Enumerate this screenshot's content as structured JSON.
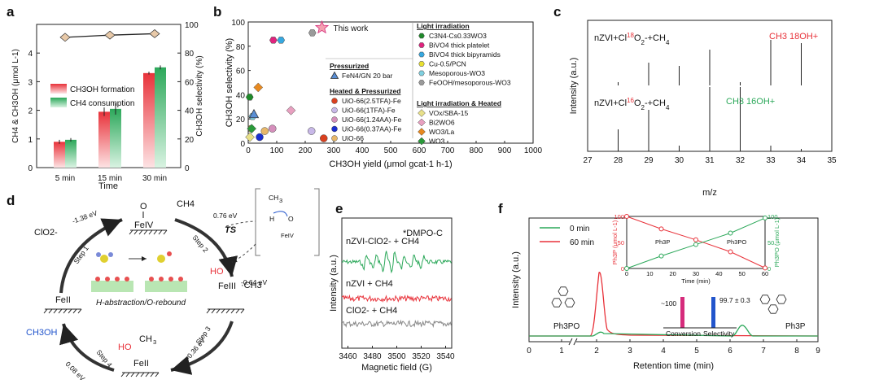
{
  "panels": {
    "a": "a",
    "b": "b",
    "c": "c",
    "d": "d",
    "e": "e",
    "f": "f"
  },
  "colors": {
    "red": "#e8323a",
    "green": "#2ca85a",
    "gray": "#888888",
    "blue": "#2255cc",
    "pink": "#d62c7c",
    "magenta": "#d62c7c"
  },
  "chart_data": [
    {
      "panel": "a",
      "type": "bar",
      "categories": [
        "5 min",
        "15 min",
        "30 min"
      ],
      "series": [
        {
          "name": "CH3OH formation",
          "values": [
            0.9,
            1.95,
            3.3
          ],
          "errors": [
            0.07,
            0.15,
            0.05
          ]
        },
        {
          "name": "CH4 consumption",
          "values": [
            0.97,
            2.05,
            3.5
          ],
          "errors": [
            0.06,
            0.2,
            0.07
          ]
        }
      ],
      "selectivity": {
        "values": [
          91,
          92.5,
          93.5
        ]
      },
      "xlabel": "Time",
      "ylabel": "CH4 & CH3OH (μmol L-1)",
      "y2label": "CH3OH selectivity (%)",
      "ylim": [
        0,
        5
      ],
      "y2lim": [
        0,
        100
      ],
      "yticks": [
        "0",
        "1",
        "2",
        "3",
        "4"
      ],
      "y2ticks": [
        "0",
        "20",
        "40",
        "60",
        "80",
        "100"
      ],
      "legend": [
        "CH3OH formation",
        "CH4 consumption"
      ]
    },
    {
      "panel": "b",
      "type": "scatter",
      "xlabel": "CH3OH yield (μmol gcat-1 h-1)",
      "ylabel": "CH3OH selectivity (%)",
      "xlim": [
        0,
        1000
      ],
      "ylim": [
        0,
        100
      ],
      "xticks": [
        "0",
        "100",
        "200",
        "300",
        "400",
        "500",
        "600",
        "700",
        "800",
        "900",
        "1000"
      ],
      "yticks": [
        "0",
        "20",
        "40",
        "60",
        "80",
        "100"
      ],
      "this_work": {
        "label": "This work",
        "x": 330,
        "y": 92
      },
      "legend_groups": [
        {
          "title": "Pressurized",
          "items": [
            {
              "name": "FeN4/GN 20 bar",
              "color": "#5a8fd6",
              "marker": "triangle"
            }
          ]
        },
        {
          "title": "Heated & Pressurized",
          "items": [
            {
              "name": "UiO-66(2.5TFA)-Fe",
              "color": "#d9401f",
              "marker": "circle"
            },
            {
              "name": "UiO-66(1TFA)-Fe",
              "color": "#c8b8e8",
              "marker": "circle"
            },
            {
              "name": "UiO-66(1.24AA)-Fe",
              "color": "#d58fbc",
              "marker": "circle"
            },
            {
              "name": "UiO-66(0.37AA)-Fe",
              "color": "#1a2fd0",
              "marker": "circle"
            },
            {
              "name": "UiO-66",
              "color": "#e8b86a",
              "marker": "circle"
            }
          ]
        },
        {
          "title": "Light irradiation",
          "items": [
            {
              "name": "C3N4-Cs0.33WO3",
              "color": "#1f8a2a",
              "marker": "hexagon"
            },
            {
              "name": "BiVO4 thick platelet",
              "color": "#e0237e",
              "marker": "hexagon"
            },
            {
              "name": "BiVO4 thick bipyramids",
              "color": "#36a8e0",
              "marker": "hexagon"
            },
            {
              "name": "Cu-0.5/PCN",
              "color": "#e8e030",
              "marker": "hexagon"
            },
            {
              "name": "Mesoporous-WO3",
              "color": "#7fd0e0",
              "marker": "hexagon"
            },
            {
              "name": "FeOOH/mesoporous-WO3",
              "color": "#9a9a9a",
              "marker": "hexagon"
            }
          ]
        },
        {
          "title": "Light irradiation & Heated",
          "items": [
            {
              "name": "VOx/SBA-15",
              "color": "#e8e08a",
              "marker": "diamond"
            },
            {
              "name": "Bi2WO6",
              "color": "#e8a0c0",
              "marker": "diamond"
            },
            {
              "name": "WO3/La",
              "color": "#e88a20",
              "marker": "diamond"
            },
            {
              "name": "WO3",
              "color": "#2a9a3a",
              "marker": "diamond"
            }
          ]
        }
      ],
      "points": [
        {
          "x": 5,
          "y": 38,
          "color": "#1f8a2a",
          "marker": "hexagon"
        },
        {
          "x": 88,
          "y": 85,
          "color": "#e0237e",
          "marker": "hexagon"
        },
        {
          "x": 115,
          "y": 85,
          "color": "#36a8e0",
          "marker": "hexagon"
        },
        {
          "x": 10,
          "y": 12,
          "color": "#e8e030",
          "marker": "hexagon"
        },
        {
          "x": 15,
          "y": 22,
          "color": "#7fd0e0",
          "marker": "hexagon"
        },
        {
          "x": 225,
          "y": 91,
          "color": "#9a9a9a",
          "marker": "hexagon"
        },
        {
          "x": 20,
          "y": 24,
          "color": "#5a8fd6",
          "marker": "triangle"
        },
        {
          "x": 265,
          "y": 4,
          "color": "#d9401f",
          "marker": "circle"
        },
        {
          "x": 222,
          "y": 10,
          "color": "#c8b8e8",
          "marker": "circle"
        },
        {
          "x": 85,
          "y": 12,
          "color": "#d58fbc",
          "marker": "circle"
        },
        {
          "x": 40,
          "y": 5,
          "color": "#1a2fd0",
          "marker": "circle"
        },
        {
          "x": 58,
          "y": 10,
          "color": "#e8b86a",
          "marker": "circle"
        },
        {
          "x": 6,
          "y": 5,
          "color": "#e8e08a",
          "marker": "diamond"
        },
        {
          "x": 150,
          "y": 27,
          "color": "#e8a0c0",
          "marker": "diamond"
        },
        {
          "x": 35,
          "y": 46,
          "color": "#e88a20",
          "marker": "diamond"
        },
        {
          "x": 12,
          "y": 12,
          "color": "#2a9a3a",
          "marker": "diamond"
        }
      ]
    },
    {
      "panel": "c",
      "type": "bar",
      "xlabel": "m/z",
      "ylabel": "Intensity (a.u.)",
      "xlim": [
        27,
        35
      ],
      "xticks": [
        "27",
        "28",
        "29",
        "30",
        "31",
        "32",
        "33",
        "34",
        "35"
      ],
      "upper": {
        "label": "nZVI+Cl18O2-+CH4",
        "label_prefix": "nZVI+Cl",
        "label_sup": "18",
        "label_suffix": "O",
        "label_sub": "2",
        "label_tail": "-+CH",
        "label_sub2": "4",
        "ion_label": "CH3 18OH+",
        "peaks": [
          {
            "x": 28,
            "y": 0.05
          },
          {
            "x": 29,
            "y": 0.35
          },
          {
            "x": 30,
            "y": 0.3
          },
          {
            "x": 31,
            "y": 0.55
          },
          {
            "x": 32,
            "y": 0.05
          },
          {
            "x": 33,
            "y": 0.7
          },
          {
            "x": 34,
            "y": 0.65
          }
        ]
      },
      "lower": {
        "label": "nZVI+Cl16O2-+CH4",
        "label_prefix": "nZVI+Cl",
        "label_sup": "16",
        "label_suffix": "O",
        "label_sub": "2",
        "label_tail": "-+CH",
        "label_sub2": "4",
        "ion_label": "CH3 16OH+",
        "peaks": [
          {
            "x": 28,
            "y": 0.3
          },
          {
            "x": 29,
            "y": 0.6
          },
          {
            "x": 30,
            "y": 0.05
          },
          {
            "x": 31,
            "y": 0.95
          },
          {
            "x": 32,
            "y": 0.95
          },
          {
            "x": 33,
            "y": 0.05
          },
          {
            "x": 34,
            "y": 0.0
          }
        ]
      }
    },
    {
      "panel": "e",
      "type": "line",
      "xlabel": "Magnetic field (G)",
      "ylabel": "Intensity (a.u.)",
      "xlim": [
        3455,
        3545
      ],
      "xticks": [
        "3460",
        "3480",
        "3500",
        "3520",
        "3540"
      ],
      "annotation": "*DMPO-C",
      "series": [
        {
          "name": "nZVI-ClO2- + CH4",
          "color": "#2ca85a"
        },
        {
          "name": "nZVI + CH4",
          "color": "#e8323a"
        },
        {
          "name": "ClO2- + CH4",
          "color": "#888888"
        }
      ]
    },
    {
      "panel": "f",
      "type": "line",
      "xlabel": "Retention time (min)",
      "ylabel": "Intensity (a.u.)",
      "xticks": [
        "0",
        "1",
        "2",
        "3",
        "4",
        "5",
        "6",
        "7",
        "8",
        "9"
      ],
      "legend": [
        "0 min",
        "60 min"
      ],
      "peak_labels": {
        "left": "Ph3PO",
        "right": "Ph3P"
      },
      "bar_labels": {
        "conversion": "Conversion",
        "selectivity": "Selectivity",
        "conv_value": "~100",
        "sel_value": "99.7 ± 0.3"
      },
      "inset": {
        "xlabel": "Time (min)",
        "ylabel_left": "Ph3P (μmol L-1)",
        "ylabel_right": "Ph3PO (μmol L-1)",
        "x": [
          0,
          15,
          30,
          45,
          60
        ],
        "ph3p": [
          100,
          76,
          55,
          32,
          1
        ],
        "ph3po": [
          0,
          24,
          46,
          68,
          97
        ],
        "xticks": [
          "0",
          "10",
          "20",
          "30",
          "40",
          "50",
          "60"
        ],
        "yticks": [
          "0",
          "50",
          "100"
        ],
        "legend": [
          "Ph3P",
          "Ph3PO"
        ]
      }
    }
  ],
  "diagram_d": {
    "energies": [
      "-1.38 eV",
      "0.76 eV",
      "-0.64 eV",
      "-0.36 eV",
      "0.08 eV"
    ],
    "steps": [
      "Step 1",
      "Step 2",
      "Step 3",
      "Step 4"
    ],
    "species": {
      "clo2": "ClO2-",
      "ch4": "CH4",
      "ch3oh": "CH3OH",
      "ts": "TS",
      "ch3": "·CH3",
      "feiv": "FeIV",
      "feii": "FeII",
      "feiii": "FeIII"
    },
    "caption": "H-abstraction/O-rebound"
  }
}
